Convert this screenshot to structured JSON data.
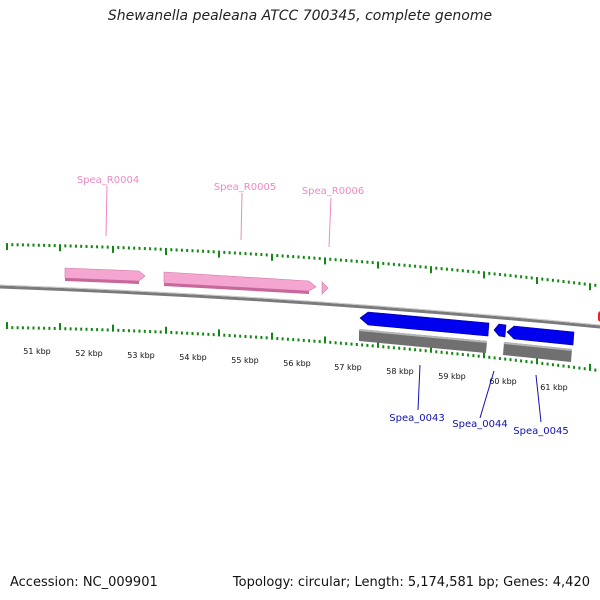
{
  "title": "Shewanella pealeana ATCC 700345, complete genome",
  "footer": {
    "accession": "Accession: NC_009901",
    "summary": "Topology: circular; Length: 5,174,581 bp; Genes: 4,420"
  },
  "colors": {
    "rna": "#f4a6d0",
    "rna_dark": "#d07aa8",
    "cds": "#0000ee",
    "cds_dark": "#0000a0",
    "gray_feature": "#777777",
    "backbone": "#888888",
    "tick": "#118811"
  },
  "kbp_labels": [
    "51 kbp",
    "52 kbp",
    "53 kbp",
    "54 kbp",
    "55 kbp",
    "56 kbp",
    "57 kbp",
    "58 kbp",
    "59 kbp",
    "60 kbp",
    "61 kbp"
  ],
  "rna_labels": [
    "Spea_R0004",
    "Spea_R0005",
    "Spea_R0006"
  ],
  "cds_labels": [
    "Spea_0043",
    "Spea_0044",
    "Spea_0045"
  ]
}
